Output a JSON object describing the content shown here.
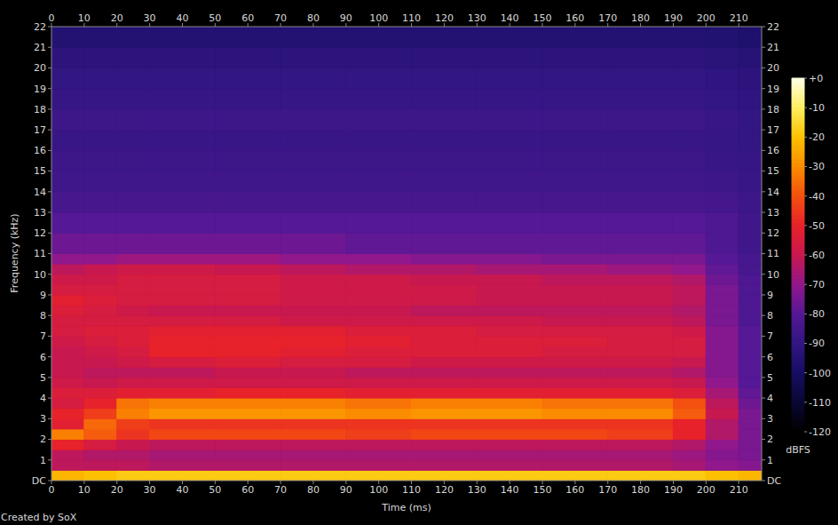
{
  "chart_data": {
    "type": "heatmap",
    "x_label": "Time (ms)",
    "y_label": "Frequency (kHz)",
    "annotations": [
      "Created by SoX"
    ],
    "xlim": [
      0,
      217
    ],
    "xticks": [
      0,
      10,
      20,
      30,
      40,
      50,
      60,
      70,
      80,
      90,
      100,
      110,
      120,
      130,
      140,
      150,
      160,
      170,
      180,
      190,
      200,
      210
    ],
    "ylim": [
      0,
      22
    ],
    "yticks": [
      {
        "value": 0,
        "label": "DC"
      },
      1,
      2,
      3,
      4,
      5,
      6,
      7,
      8,
      9,
      10,
      11,
      12,
      13,
      14,
      15,
      16,
      17,
      18,
      19,
      20,
      21,
      22
    ],
    "time_bins": [
      0,
      10,
      20,
      30,
      50,
      70,
      90,
      110,
      130,
      150,
      170,
      190,
      200,
      210,
      217
    ],
    "freq_bins": [
      0,
      0.5,
      1,
      1.5,
      2,
      2.5,
      3,
      3.5,
      4,
      4.5,
      5,
      5.5,
      6,
      6.5,
      7,
      7.5,
      8,
      8.5,
      9,
      9.5,
      10,
      10.5,
      11,
      12,
      13,
      14,
      15,
      16,
      17,
      18,
      19,
      20,
      21,
      22
    ],
    "cells": [
      [
        -22,
        -20,
        -18,
        -18,
        -18,
        -18,
        -18,
        -18,
        -18,
        -18,
        -18,
        -18,
        -20,
        -22
      ],
      [
        -62,
        -62,
        -62,
        -64,
        -64,
        -64,
        -64,
        -64,
        -64,
        -64,
        -64,
        -66,
        -70,
        -72
      ],
      [
        -62,
        -64,
        -64,
        -66,
        -66,
        -66,
        -66,
        -66,
        -66,
        -66,
        -66,
        -68,
        -72,
        -74
      ],
      [
        -50,
        -56,
        -60,
        -62,
        -62,
        -62,
        -62,
        -62,
        -62,
        -62,
        -62,
        -64,
        -70,
        -74
      ],
      [
        -32,
        -38,
        -46,
        -42,
        -42,
        -42,
        -44,
        -42,
        -42,
        -42,
        -44,
        -50,
        -64,
        -74
      ],
      [
        -52,
        -36,
        -44,
        -46,
        -46,
        -46,
        -46,
        -46,
        -46,
        -46,
        -46,
        -50,
        -64,
        -74
      ],
      [
        -50,
        -44,
        -32,
        -28,
        -28,
        -28,
        -30,
        -28,
        -28,
        -30,
        -30,
        -38,
        -60,
        -74
      ],
      [
        -56,
        -50,
        -34,
        -32,
        -32,
        -32,
        -34,
        -32,
        -32,
        -34,
        -34,
        -40,
        -62,
        -76
      ],
      [
        -54,
        -54,
        -52,
        -52,
        -50,
        -50,
        -52,
        -52,
        -52,
        -52,
        -52,
        -54,
        -66,
        -78
      ],
      [
        -58,
        -60,
        -58,
        -58,
        -58,
        -58,
        -58,
        -58,
        -58,
        -58,
        -58,
        -60,
        -70,
        -80
      ],
      [
        -60,
        -62,
        -62,
        -62,
        -60,
        -60,
        -62,
        -62,
        -62,
        -62,
        -62,
        -64,
        -72,
        -80
      ],
      [
        -60,
        -60,
        -58,
        -56,
        -54,
        -56,
        -56,
        -58,
        -58,
        -58,
        -58,
        -60,
        -72,
        -80
      ],
      [
        -60,
        -58,
        -56,
        -50,
        -50,
        -52,
        -54,
        -54,
        -54,
        -56,
        -56,
        -56,
        -72,
        -80
      ],
      [
        -58,
        -56,
        -54,
        -50,
        -50,
        -50,
        -52,
        -54,
        -54,
        -54,
        -56,
        -56,
        -72,
        -80
      ],
      [
        -56,
        -54,
        -54,
        -52,
        -52,
        -52,
        -54,
        -54,
        -56,
        -56,
        -56,
        -58,
        -72,
        -80
      ],
      [
        -56,
        -56,
        -56,
        -56,
        -56,
        -58,
        -58,
        -58,
        -58,
        -60,
        -60,
        -62,
        -74,
        -82
      ],
      [
        -54,
        -56,
        -58,
        -60,
        -60,
        -60,
        -60,
        -62,
        -62,
        -62,
        -62,
        -64,
        -74,
        -82
      ],
      [
        -52,
        -54,
        -56,
        -56,
        -56,
        -58,
        -58,
        -58,
        -60,
        -60,
        -60,
        -62,
        -74,
        -82
      ],
      [
        -56,
        -56,
        -56,
        -56,
        -56,
        -58,
        -58,
        -58,
        -60,
        -60,
        -60,
        -62,
        -74,
        -82
      ],
      [
        -58,
        -58,
        -56,
        -56,
        -56,
        -58,
        -58,
        -60,
        -60,
        -62,
        -62,
        -64,
        -76,
        -82
      ],
      [
        -62,
        -60,
        -58,
        -58,
        -60,
        -62,
        -64,
        -64,
        -66,
        -66,
        -68,
        -70,
        -78,
        -84
      ],
      [
        -70,
        -70,
        -68,
        -68,
        -68,
        -70,
        -70,
        -72,
        -72,
        -74,
        -74,
        -74,
        -80,
        -84
      ],
      [
        -76,
        -76,
        -76,
        -76,
        -76,
        -76,
        -78,
        -78,
        -78,
        -78,
        -78,
        -78,
        -82,
        -86
      ],
      [
        -80,
        -80,
        -80,
        -80,
        -80,
        -80,
        -80,
        -80,
        -80,
        -80,
        -80,
        -80,
        -82,
        -86
      ],
      [
        -84,
        -84,
        -84,
        -84,
        -84,
        -84,
        -84,
        -84,
        -84,
        -84,
        -84,
        -84,
        -85,
        -87
      ],
      [
        -86,
        -86,
        -86,
        -86,
        -86,
        -86,
        -86,
        -86,
        -86,
        -86,
        -86,
        -86,
        -87,
        -88
      ],
      [
        -87,
        -87,
        -87,
        -87,
        -87,
        -87,
        -87,
        -87,
        -87,
        -87,
        -87,
        -87,
        -88,
        -89
      ],
      [
        -88,
        -88,
        -88,
        -88,
        -88,
        -88,
        -88,
        -88,
        -88,
        -88,
        -88,
        -88,
        -89,
        -90
      ],
      [
        -87,
        -87,
        -87,
        -87,
        -87,
        -87,
        -87,
        -87,
        -87,
        -87,
        -87,
        -87,
        -88,
        -90
      ],
      [
        -89,
        -89,
        -89,
        -89,
        -89,
        -89,
        -89,
        -89,
        -89,
        -89,
        -89,
        -89,
        -90,
        -91
      ],
      [
        -90,
        -90,
        -90,
        -90,
        -90,
        -90,
        -90,
        -90,
        -90,
        -90,
        -90,
        -90,
        -91,
        -92
      ],
      [
        -92,
        -92,
        -92,
        -92,
        -92,
        -92,
        -92,
        -92,
        -92,
        -92,
        -92,
        -92,
        -93,
        -94
      ],
      [
        -95,
        -95,
        -95,
        -95,
        -95,
        -95,
        -95,
        -95,
        -95,
        -95,
        -95,
        -95,
        -96,
        -97
      ]
    ],
    "colorbar": {
      "label": "dBFS",
      "range": [
        -120,
        0
      ],
      "ticks": [
        {
          "value": 0,
          "label": "+0"
        },
        -10,
        -20,
        -30,
        -40,
        -50,
        -60,
        -70,
        -80,
        -90,
        -100,
        -110,
        -120
      ]
    }
  }
}
